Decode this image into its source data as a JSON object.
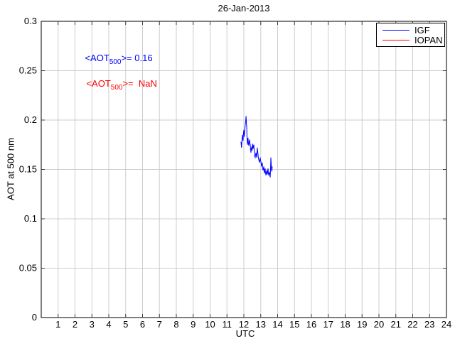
{
  "title": "26-Jan-2013",
  "colors": {
    "igf": "#0000ff",
    "iopan": "#ff0000",
    "grid": "#cdcdcd",
    "axis": "#3a3a3a",
    "text": "#000000"
  },
  "annotations": {
    "igf_mean": {
      "prefix": "<AOT",
      "sub": "500",
      "suffix": ">= 0.16",
      "color": "#0000ff"
    },
    "iopan_mean": {
      "prefix": "<AOT",
      "sub": "500",
      "suffix": ">=  NaN",
      "color": "#ff0000"
    }
  },
  "legend": {
    "items": [
      {
        "label": "IGF",
        "color": "#0000ff"
      },
      {
        "label": "IOPAN",
        "color": "#ff0000"
      }
    ]
  },
  "chart_data": {
    "type": "line",
    "title": "26-Jan-2013",
    "xlabel": "UTC",
    "ylabel": "AOT at 500 nm",
    "xlim": [
      0,
      24
    ],
    "ylim": [
      0,
      0.3
    ],
    "xticks": [
      1,
      2,
      3,
      4,
      5,
      6,
      7,
      8,
      9,
      10,
      11,
      12,
      13,
      14,
      15,
      16,
      17,
      18,
      19,
      20,
      21,
      22,
      23,
      24
    ],
    "yticks": [
      0,
      0.05,
      0.1,
      0.15,
      0.2,
      0.25,
      0.3
    ],
    "yticklabels": [
      "0",
      "0.05",
      "0.1",
      "0.15",
      "0.2",
      "0.25",
      "0.3"
    ],
    "grid": true,
    "legend_position": "top-right",
    "series": [
      {
        "name": "IGF",
        "color": "#0000ff",
        "points": [
          [
            11.83,
            0.178
          ],
          [
            11.86,
            0.172
          ],
          [
            11.89,
            0.18
          ],
          [
            11.92,
            0.185
          ],
          [
            11.95,
            0.179
          ],
          [
            11.98,
            0.187
          ],
          [
            12.0,
            0.19
          ],
          [
            12.03,
            0.183
          ],
          [
            12.06,
            0.191
          ],
          [
            12.09,
            0.196
          ],
          [
            12.11,
            0.199
          ],
          [
            12.13,
            0.204
          ],
          [
            12.15,
            0.197
          ],
          [
            12.17,
            0.193
          ],
          [
            12.19,
            0.182
          ],
          [
            12.21,
            0.175
          ],
          [
            12.23,
            0.18
          ],
          [
            12.25,
            0.182
          ],
          [
            12.27,
            0.176
          ],
          [
            12.3,
            0.174
          ],
          [
            12.32,
            0.179
          ],
          [
            12.34,
            0.18
          ],
          [
            12.36,
            0.176
          ],
          [
            12.38,
            0.175
          ],
          [
            12.4,
            0.17
          ],
          [
            12.42,
            0.167
          ],
          [
            12.44,
            0.171
          ],
          [
            12.46,
            0.172
          ],
          [
            12.49,
            0.169
          ],
          [
            12.51,
            0.176
          ],
          [
            12.53,
            0.173
          ],
          [
            12.55,
            0.171
          ],
          [
            12.57,
            0.174
          ],
          [
            12.59,
            0.175
          ],
          [
            12.61,
            0.17
          ],
          [
            12.63,
            0.167
          ],
          [
            12.65,
            0.163
          ],
          [
            12.67,
            0.162
          ],
          [
            12.7,
            0.165
          ],
          [
            12.72,
            0.167
          ],
          [
            12.74,
            0.164
          ],
          [
            12.76,
            0.162
          ],
          [
            12.78,
            0.167
          ],
          [
            12.8,
            0.172
          ],
          [
            12.82,
            0.168
          ],
          [
            12.84,
            0.165
          ],
          [
            12.86,
            0.162
          ],
          [
            12.88,
            0.16
          ],
          [
            12.91,
            0.158
          ],
          [
            12.93,
            0.157
          ],
          [
            12.95,
            0.16
          ],
          [
            12.97,
            0.162
          ],
          [
            12.99,
            0.159
          ],
          [
            13.01,
            0.158
          ],
          [
            13.03,
            0.155
          ],
          [
            13.05,
            0.153
          ],
          [
            13.07,
            0.155
          ],
          [
            13.09,
            0.157
          ],
          [
            13.11,
            0.152
          ],
          [
            13.14,
            0.149
          ],
          [
            13.16,
            0.151
          ],
          [
            13.18,
            0.153
          ],
          [
            13.2,
            0.149
          ],
          [
            13.22,
            0.146
          ],
          [
            13.24,
            0.149
          ],
          [
            13.26,
            0.151
          ],
          [
            13.28,
            0.147
          ],
          [
            13.31,
            0.144
          ],
          [
            13.33,
            0.147
          ],
          [
            13.35,
            0.149
          ],
          [
            13.37,
            0.146
          ],
          [
            13.39,
            0.145
          ],
          [
            13.41,
            0.148
          ],
          [
            13.43,
            0.151
          ],
          [
            13.45,
            0.147
          ],
          [
            13.47,
            0.144
          ],
          [
            13.49,
            0.146
          ],
          [
            13.52,
            0.147
          ],
          [
            13.54,
            0.144
          ],
          [
            13.56,
            0.142
          ],
          [
            13.58,
            0.15
          ],
          [
            13.6,
            0.162
          ],
          [
            13.62,
            0.155
          ],
          [
            13.64,
            0.15
          ],
          [
            13.66,
            0.148
          ],
          [
            13.68,
            0.153
          ]
        ]
      },
      {
        "name": "IOPAN",
        "color": "#ff0000",
        "points": []
      }
    ]
  }
}
